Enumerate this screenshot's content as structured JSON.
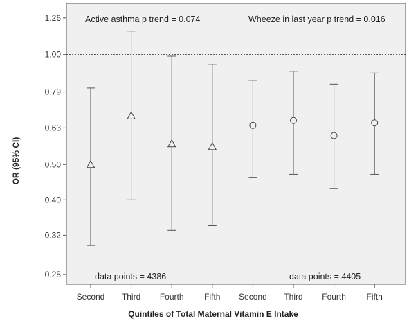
{
  "chart_data": {
    "type": "scatter",
    "xlabel": "Quintiles of Total Maternal Vitamin E Intake",
    "ylabel": "OR (95% CI)",
    "y_scale": "log",
    "ylim": [
      0.235,
      1.38
    ],
    "y_ticks": [
      {
        "value": 1.26,
        "label": "1.26"
      },
      {
        "value": 1.0,
        "label": "1.00"
      },
      {
        "value": 0.79,
        "label": "0.79"
      },
      {
        "value": 0.63,
        "label": "0.63"
      },
      {
        "value": 0.5,
        "label": "0.50"
      },
      {
        "value": 0.4,
        "label": "0.40"
      },
      {
        "value": 0.32,
        "label": "0.32"
      },
      {
        "value": 0.25,
        "label": "0.25"
      }
    ],
    "reference_line": 1.0,
    "grid": false,
    "categories": [
      "Second",
      "Third",
      "Fourth",
      "Fifth",
      "Second",
      "Third",
      "Fourth",
      "Fifth"
    ],
    "series": [
      {
        "marker": "triangle",
        "points": [
          {
            "category_index": 0,
            "or": 0.5,
            "lower": 0.3,
            "upper": 0.81
          },
          {
            "category_index": 1,
            "or": 0.68,
            "lower": 0.4,
            "upper": 1.16
          },
          {
            "category_index": 2,
            "or": 0.57,
            "lower": 0.33,
            "upper": 0.99
          },
          {
            "category_index": 3,
            "or": 0.56,
            "lower": 0.34,
            "upper": 0.94
          }
        ],
        "data_points_label": "data points = 4386"
      },
      {
        "marker": "circle",
        "points": [
          {
            "category_index": 4,
            "or": 0.64,
            "lower": 0.46,
            "upper": 0.85
          },
          {
            "category_index": 5,
            "or": 0.66,
            "lower": 0.47,
            "upper": 0.9
          },
          {
            "category_index": 6,
            "or": 0.6,
            "lower": 0.43,
            "upper": 0.83
          },
          {
            "category_index": 7,
            "or": 0.65,
            "lower": 0.47,
            "upper": 0.89
          }
        ],
        "data_points_label": "data points = 4405"
      }
    ],
    "annotations": {
      "left": "Active asthma p trend = 0.074",
      "right": "Wheeze in last year p trend = 0.016"
    }
  }
}
